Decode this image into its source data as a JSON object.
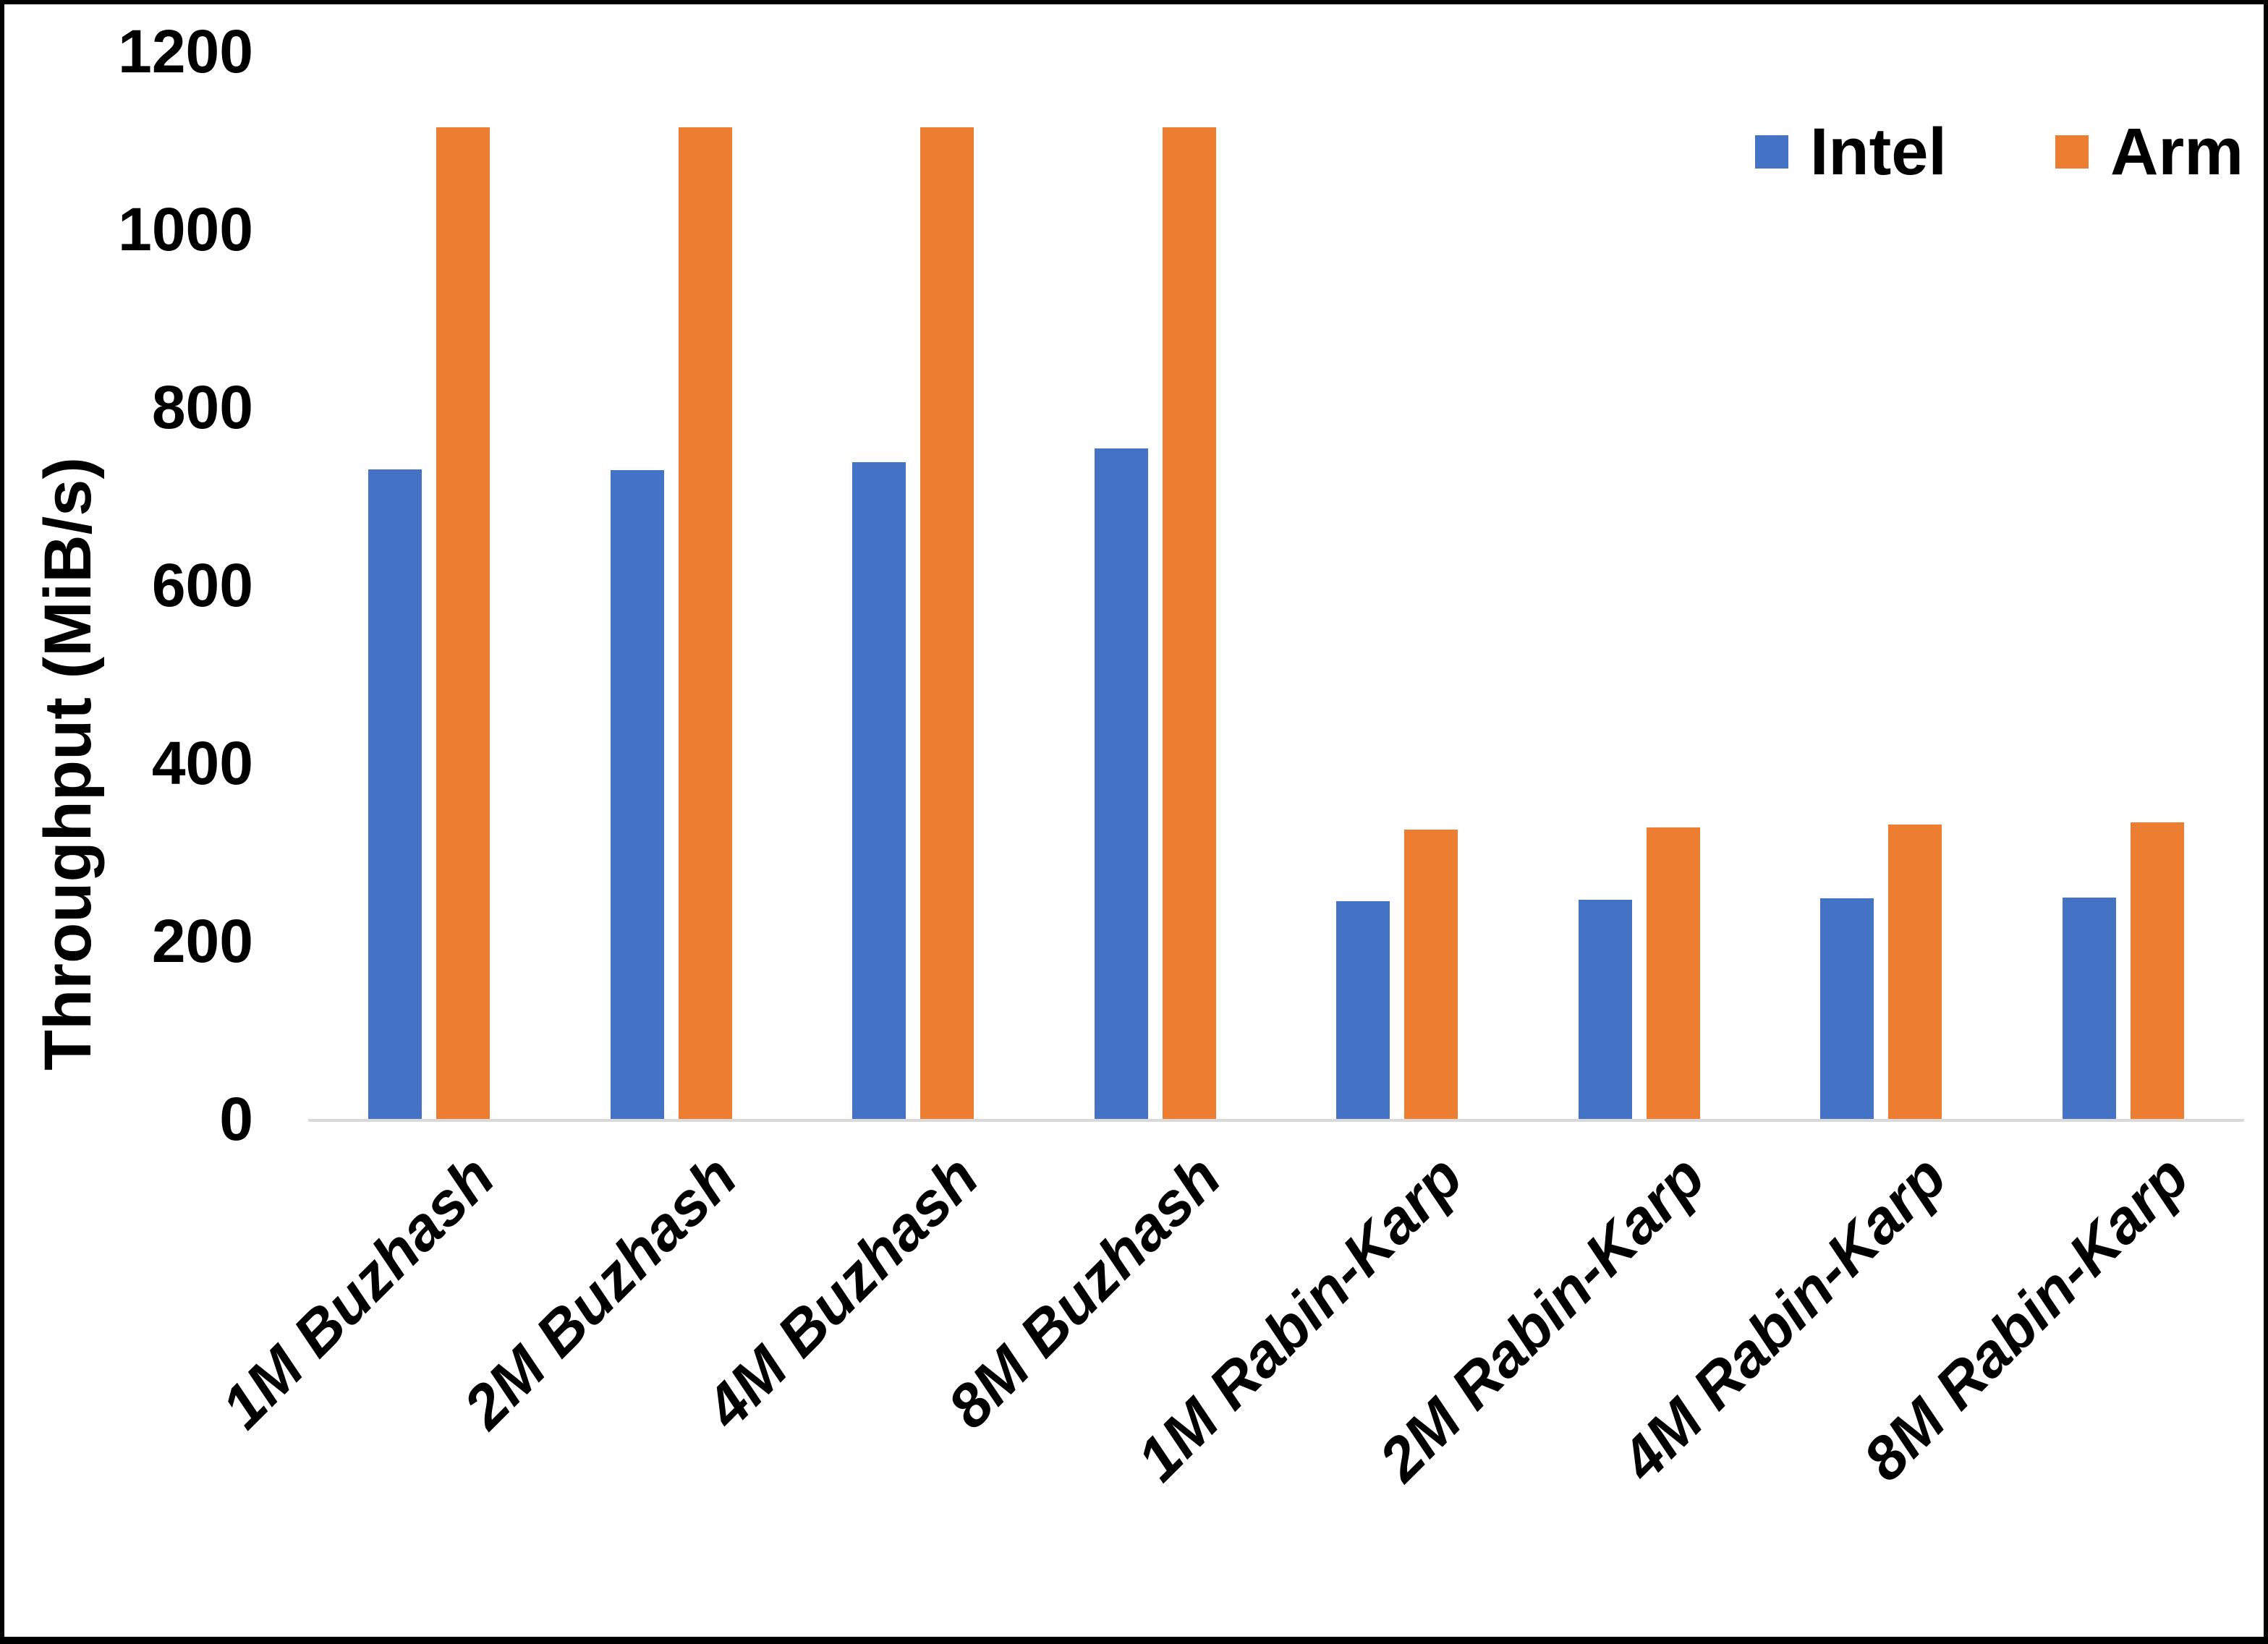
{
  "chart_data": {
    "type": "bar",
    "title": "",
    "xlabel": "",
    "ylabel": "Throughput (MiB/s)",
    "categories": [
      "1M Buzhash",
      "2M Buzhash",
      "4M Buzhash",
      "8M Buzhash",
      "1M Rabin-Karp",
      "2M Rabin-Karp",
      "4M Rabin-Karp",
      "8M Rabin-Karp"
    ],
    "series": [
      {
        "name": "Intel",
        "color": "#4472C4",
        "values": [
          730,
          729,
          738,
          754,
          245,
          246,
          248,
          249
        ]
      },
      {
        "name": "Arm",
        "color": "#ED7D31",
        "values": [
          1115,
          1115,
          1115,
          1115,
          325,
          328,
          331,
          333
        ]
      }
    ],
    "ylim": [
      0,
      1200
    ],
    "yticks": [
      0,
      200,
      400,
      600,
      800,
      1000,
      1200
    ],
    "grid": false,
    "legend_position": "top-right"
  },
  "colors": {
    "background": "#FFFFFF",
    "border": "#000000",
    "axis_line": "#D9D9D9",
    "text": "#000000"
  }
}
